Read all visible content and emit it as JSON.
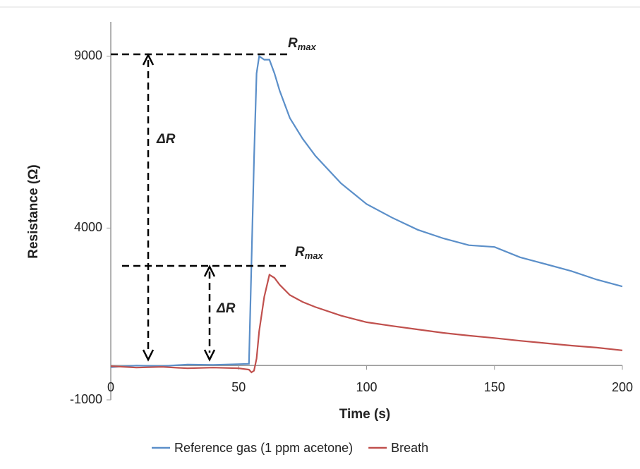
{
  "chart_data": {
    "type": "line",
    "x_label": "Time (s)",
    "y_label": "Resistance (Ω)",
    "xlim": [
      0,
      200
    ],
    "xticks": [
      0,
      50,
      100,
      150,
      200
    ],
    "ylim": [
      -1000,
      10000
    ],
    "yticks": [
      -1000,
      4000,
      9000
    ],
    "legend": "bottom",
    "annotations": [
      {
        "main": "R",
        "sub": "max"
      },
      {
        "main": "ΔR"
      },
      {
        "main": "R",
        "sub": "max"
      },
      {
        "main": "ΔR"
      }
    ],
    "series": [
      {
        "name": "Reference gas (1 ppm acetone)",
        "color": "#5b8fc9",
        "x": [
          0,
          10,
          20,
          30,
          40,
          50,
          54,
          55,
          56,
          57,
          58,
          60,
          62,
          64,
          66,
          70,
          75,
          80,
          90,
          100,
          110,
          120,
          130,
          140,
          150,
          160,
          170,
          180,
          190,
          200
        ],
        "values": [
          -50,
          0,
          -20,
          30,
          20,
          40,
          50,
          3000,
          6000,
          8500,
          9000,
          8900,
          8900,
          8500,
          8000,
          7200,
          6600,
          6100,
          5300,
          4700,
          4300,
          3950,
          3700,
          3500,
          3450,
          3150,
          2950,
          2750,
          2500,
          2300
        ]
      },
      {
        "name": "Breath",
        "color": "#c0504d",
        "x": [
          0,
          10,
          20,
          30,
          40,
          50,
          54,
          55,
          56,
          57,
          58,
          60,
          62,
          64,
          66,
          70,
          75,
          80,
          90,
          100,
          110,
          120,
          130,
          140,
          150,
          160,
          170,
          180,
          190,
          200
        ],
        "values": [
          -20,
          -60,
          -40,
          -80,
          -60,
          -80,
          -120,
          -200,
          -150,
          200,
          1000,
          2000,
          2640,
          2550,
          2350,
          2050,
          1850,
          1700,
          1450,
          1260,
          1150,
          1050,
          950,
          870,
          800,
          720,
          650,
          580,
          520,
          440
        ]
      }
    ]
  }
}
